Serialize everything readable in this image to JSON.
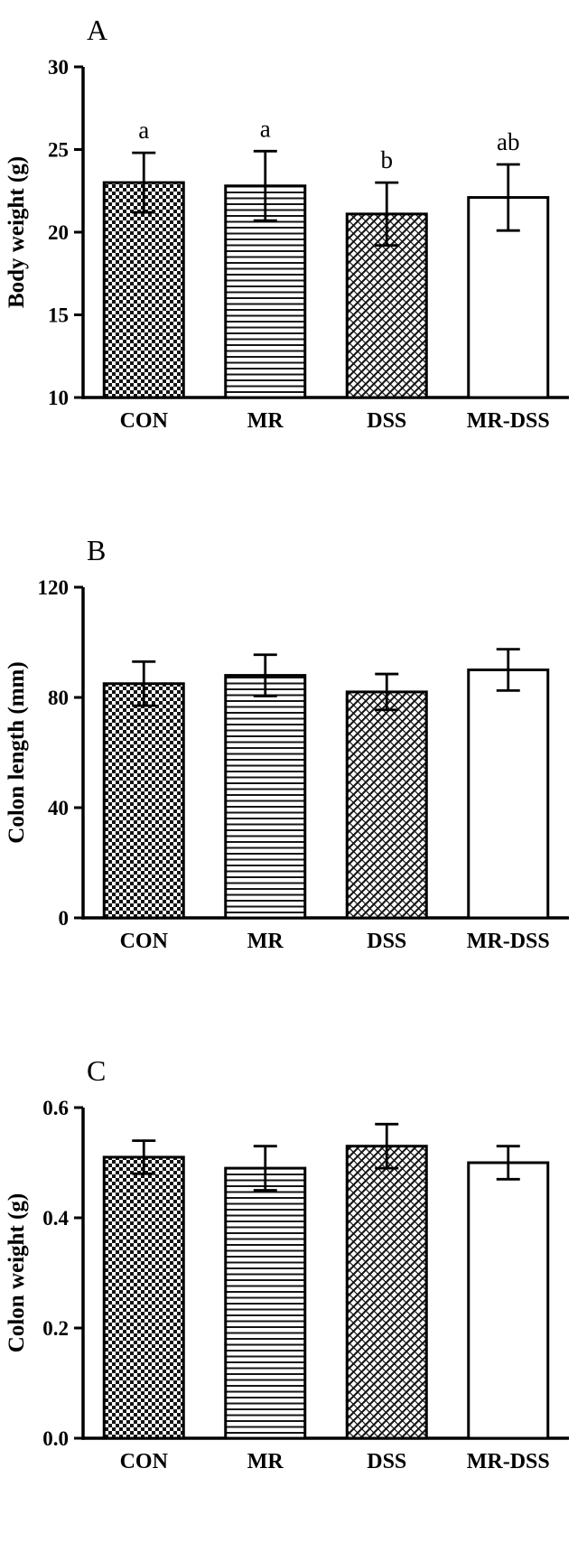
{
  "figure": {
    "background": "#ffffff",
    "ink_color": "#000000"
  },
  "chart_data": [
    {
      "type": "bar",
      "panel": "A",
      "title": "",
      "xlabel": "",
      "ylabel": "Body weight (g)",
      "categories": [
        "CON",
        "MR",
        "DSS",
        "MR-DSS"
      ],
      "values": [
        23.0,
        22.8,
        21.1,
        22.1
      ],
      "errors": [
        1.8,
        2.1,
        1.9,
        2.0
      ],
      "sig_labels": [
        "a",
        "a",
        "b",
        "ab"
      ],
      "ylim": [
        10,
        30
      ],
      "yticks": [
        10,
        15,
        20,
        25,
        30
      ],
      "ytick_labels": [
        "10",
        "15",
        "20",
        "25",
        "30"
      ],
      "bar_patterns": [
        "checkerboard",
        "horizontal-lines",
        "diagonal-weave",
        "solid-white"
      ],
      "grid": false,
      "legend": "none"
    },
    {
      "type": "bar",
      "panel": "B",
      "title": "",
      "xlabel": "",
      "ylabel": "Colon length (mm)",
      "categories": [
        "CON",
        "MR",
        "DSS",
        "MR-DSS"
      ],
      "values": [
        85,
        88,
        82,
        90
      ],
      "errors": [
        8,
        7.5,
        6.5,
        7.5
      ],
      "sig_labels": [
        "",
        "",
        "",
        ""
      ],
      "ylim": [
        0,
        120
      ],
      "yticks": [
        0,
        40,
        80,
        120
      ],
      "ytick_labels": [
        "0",
        "40",
        "80",
        "120"
      ],
      "bar_patterns": [
        "checkerboard",
        "horizontal-lines",
        "diagonal-weave",
        "solid-white"
      ],
      "grid": false,
      "legend": "none"
    },
    {
      "type": "bar",
      "panel": "C",
      "title": "",
      "xlabel": "",
      "ylabel": "Colon weight (g)",
      "categories": [
        "CON",
        "MR",
        "DSS",
        "MR-DSS"
      ],
      "values": [
        0.51,
        0.49,
        0.53,
        0.5
      ],
      "errors": [
        0.03,
        0.04,
        0.04,
        0.03
      ],
      "sig_labels": [
        "",
        "",
        "",
        ""
      ],
      "ylim": [
        0,
        0.6
      ],
      "yticks": [
        0,
        0.2,
        0.4,
        0.6
      ],
      "ytick_labels": [
        "0.0",
        "0.2",
        "0.4",
        "0.6"
      ],
      "bar_patterns": [
        "checkerboard",
        "horizontal-lines",
        "diagonal-weave",
        "solid-white"
      ],
      "grid": false,
      "legend": "none"
    }
  ]
}
